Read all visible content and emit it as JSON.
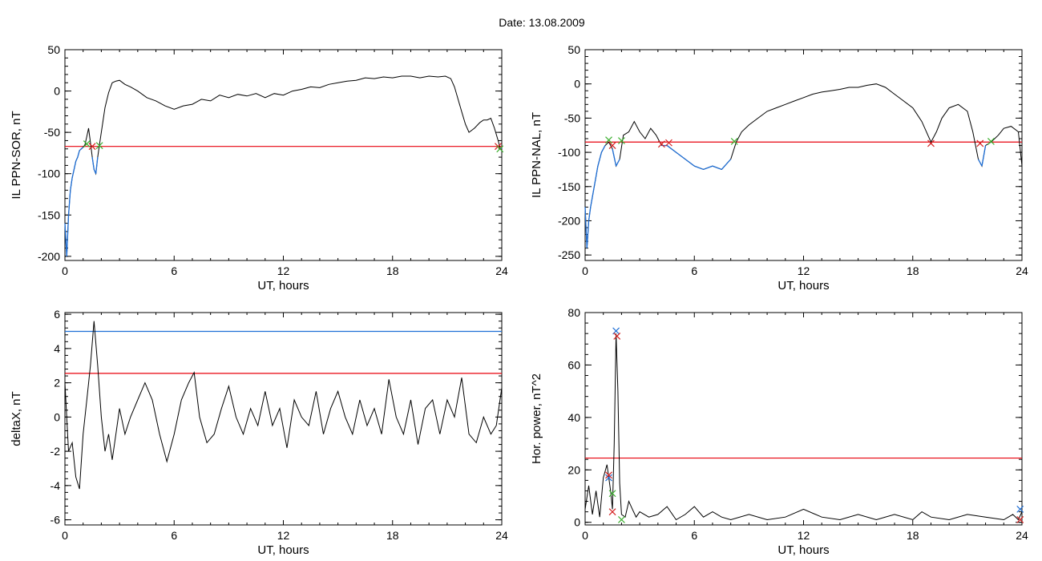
{
  "header": {
    "date_label": "Date:  13.08.2009"
  },
  "colors": {
    "line": "#000000",
    "threshold_red": "#e8000b",
    "threshold_blue": "#1f6fd6",
    "marker_green": "#3cb030",
    "marker_red": "#d42020",
    "marker_blue": "#1f6fd6"
  },
  "chart_data": [
    {
      "id": "sor",
      "type": "line",
      "title": "",
      "xlabel": "UT, hours",
      "ylabel": "IL PPN-SOR, nT",
      "xlim": [
        0,
        24
      ],
      "ylim": [
        -205,
        50
      ],
      "xticks": [
        "0",
        "6",
        "12",
        "18",
        "24"
      ],
      "yticks": [
        "50",
        "0",
        "-50",
        "-100",
        "-150",
        "-200"
      ],
      "ytick_values": [
        50,
        0,
        -50,
        -100,
        -150,
        -200
      ],
      "threshold_red": -67,
      "series": [
        {
          "x": [
            0,
            0.1,
            0.2,
            0.3,
            0.4,
            0.5,
            0.6,
            0.7,
            0.8,
            0.9,
            1.0,
            1.1,
            1.2,
            1.3,
            1.4,
            1.5,
            1.6,
            1.7,
            1.8,
            1.9,
            2.0,
            2.2,
            2.4,
            2.6,
            2.8,
            3.0,
            3.3,
            3.6,
            4.0,
            4.5,
            5.0,
            5.5,
            6.0,
            6.5,
            7.0,
            7.5,
            8.0,
            8.5,
            9.0,
            9.5,
            10.0,
            10.5,
            11.0,
            11.5,
            12.0,
            12.5,
            13.0,
            13.5,
            14.0,
            14.5,
            15.0,
            15.5,
            16.0,
            16.5,
            17.0,
            17.5,
            18.0,
            18.5,
            19.0,
            19.5,
            20.0,
            20.5,
            20.9,
            21.2,
            21.4,
            21.6,
            21.8,
            22.0,
            22.2,
            22.5,
            22.8,
            23.0,
            23.2,
            23.4,
            23.6,
            23.8,
            23.9,
            24.0
          ],
          "values": [
            -160,
            -200,
            -150,
            -120,
            -105,
            -95,
            -85,
            -80,
            -72,
            -70,
            -68,
            -65,
            -55,
            -45,
            -62,
            -80,
            -95,
            -100,
            -80,
            -65,
            -50,
            -20,
            -2,
            10,
            12,
            13,
            8,
            5,
            0,
            -8,
            -12,
            -18,
            -22,
            -18,
            -16,
            -10,
            -12,
            -5,
            -8,
            -4,
            -6,
            -3,
            -8,
            -3,
            -5,
            0,
            2,
            5,
            4,
            8,
            10,
            12,
            13,
            16,
            15,
            17,
            16,
            18,
            18,
            16,
            18,
            17,
            18,
            15,
            5,
            -10,
            -25,
            -40,
            -50,
            -45,
            -38,
            -35,
            -35,
            -33,
            -45,
            -60,
            -68,
            -70
          ]
        }
      ],
      "markers": [
        {
          "x": 1.2,
          "y": -64,
          "color": "green"
        },
        {
          "x": 1.5,
          "y": -67,
          "color": "red"
        },
        {
          "x": 1.9,
          "y": -66,
          "color": "green"
        },
        {
          "x": 23.8,
          "y": -67,
          "color": "red"
        },
        {
          "x": 23.9,
          "y": -70,
          "color": "green"
        }
      ]
    },
    {
      "id": "nal",
      "type": "line",
      "title": "",
      "xlabel": "UT, hours",
      "ylabel": "IL PPN-NAL, nT",
      "xlim": [
        0,
        24
      ],
      "ylim": [
        -258,
        50
      ],
      "xticks": [
        "0",
        "6",
        "12",
        "18",
        "24"
      ],
      "yticks": [
        "50",
        "0",
        "-50",
        "-100",
        "-150",
        "-200",
        "-250"
      ],
      "ytick_values": [
        50,
        0,
        -50,
        -100,
        -150,
        -200,
        -250
      ],
      "threshold_red": -85,
      "series": [
        {
          "x": [
            0,
            0.1,
            0.2,
            0.3,
            0.5,
            0.7,
            0.9,
            1.1,
            1.3,
            1.5,
            1.7,
            1.9,
            2.1,
            2.4,
            2.7,
            3.0,
            3.3,
            3.6,
            3.9,
            4.2,
            4.5,
            5.0,
            5.5,
            6.0,
            6.5,
            7.0,
            7.5,
            8.0,
            8.3,
            8.6,
            9.0,
            9.5,
            10.0,
            10.5,
            11.0,
            11.5,
            12.0,
            12.5,
            13.0,
            13.5,
            14.0,
            14.5,
            15.0,
            15.5,
            16.0,
            16.5,
            17.0,
            17.5,
            18.0,
            18.5,
            19.0,
            19.3,
            19.6,
            20.0,
            20.5,
            21.0,
            21.3,
            21.6,
            21.8,
            22.0,
            22.3,
            22.7,
            23.0,
            23.4,
            23.8,
            24.0
          ],
          "values": [
            -180,
            -240,
            -200,
            -180,
            -150,
            -120,
            -100,
            -90,
            -85,
            -95,
            -120,
            -110,
            -75,
            -70,
            -55,
            -70,
            -80,
            -65,
            -75,
            -90,
            -90,
            -100,
            -110,
            -120,
            -125,
            -120,
            -125,
            -110,
            -85,
            -70,
            -60,
            -50,
            -40,
            -35,
            -30,
            -25,
            -20,
            -15,
            -12,
            -10,
            -8,
            -5,
            -5,
            -2,
            0,
            -5,
            -15,
            -25,
            -35,
            -55,
            -85,
            -70,
            -50,
            -35,
            -30,
            -40,
            -70,
            -110,
            -120,
            -90,
            -85,
            -75,
            -65,
            -62,
            -70,
            -120
          ]
        }
      ],
      "markers": [
        {
          "x": 1.3,
          "y": -82,
          "color": "green"
        },
        {
          "x": 1.5,
          "y": -90,
          "color": "red"
        },
        {
          "x": 2.0,
          "y": -83,
          "color": "green"
        },
        {
          "x": 4.2,
          "y": -88,
          "color": "red"
        },
        {
          "x": 4.6,
          "y": -86,
          "color": "red"
        },
        {
          "x": 8.2,
          "y": -84,
          "color": "green"
        },
        {
          "x": 19.0,
          "y": -87,
          "color": "red"
        },
        {
          "x": 21.7,
          "y": -87,
          "color": "red"
        },
        {
          "x": 22.3,
          "y": -84,
          "color": "green"
        }
      ]
    },
    {
      "id": "deltax",
      "type": "line",
      "title": "",
      "xlabel": "UT, hours",
      "ylabel": "deltaX, nT",
      "xlim": [
        0,
        24
      ],
      "ylim": [
        -6.3,
        6.1
      ],
      "xticks": [
        "0",
        "6",
        "12",
        "18",
        "24"
      ],
      "yticks": [
        "6",
        "4",
        "2",
        "0",
        "-2",
        "-4",
        "-6"
      ],
      "ytick_values": [
        6,
        4,
        2,
        0,
        -2,
        -4,
        -6
      ],
      "threshold_red": 2.55,
      "threshold_blue": 5.0,
      "series": [
        {
          "x": [
            0,
            0.2,
            0.4,
            0.6,
            0.8,
            1.0,
            1.2,
            1.4,
            1.6,
            1.8,
            2.0,
            2.2,
            2.4,
            2.6,
            2.8,
            3.0,
            3.3,
            3.6,
            4.0,
            4.4,
            4.8,
            5.2,
            5.6,
            6.0,
            6.4,
            6.8,
            7.1,
            7.4,
            7.8,
            8.2,
            8.6,
            9.0,
            9.4,
            9.8,
            10.2,
            10.6,
            11.0,
            11.4,
            11.8,
            12.2,
            12.6,
            13.0,
            13.4,
            13.8,
            14.2,
            14.6,
            15.0,
            15.4,
            15.8,
            16.2,
            16.6,
            17.0,
            17.4,
            17.8,
            18.2,
            18.6,
            19.0,
            19.4,
            19.8,
            20.2,
            20.6,
            21.0,
            21.4,
            21.8,
            22.2,
            22.6,
            23.0,
            23.4,
            23.7,
            24.0
          ],
          "values": [
            2.0,
            -2.0,
            -1.5,
            -3.5,
            -4.2,
            -1.0,
            1.0,
            3.0,
            5.6,
            3.0,
            0.0,
            -2.0,
            -1.0,
            -2.5,
            -1.0,
            0.5,
            -1.0,
            0.0,
            1.0,
            2.0,
            1.0,
            -1.0,
            -2.6,
            -1.0,
            1.0,
            2.0,
            2.6,
            0.0,
            -1.5,
            -1.0,
            0.5,
            1.8,
            0.0,
            -1.0,
            0.5,
            -0.5,
            1.5,
            -0.5,
            0.5,
            -1.8,
            1.0,
            0.0,
            -0.5,
            1.5,
            -1.0,
            0.5,
            1.5,
            0.0,
            -1.0,
            1.0,
            -0.5,
            0.5,
            -1.0,
            2.2,
            0.0,
            -1.0,
            1.0,
            -1.6,
            0.5,
            1.0,
            -1.0,
            1.0,
            0.0,
            2.3,
            -1.0,
            -1.5,
            0.0,
            -1.0,
            -0.5,
            1.7
          ]
        }
      ],
      "markers": []
    },
    {
      "id": "power",
      "type": "line",
      "title": "",
      "xlabel": "UT, hours",
      "ylabel": "Hor. power, nT^2",
      "xlim": [
        0,
        24
      ],
      "ylim": [
        -1,
        80
      ],
      "xticks": [
        "0",
        "6",
        "12",
        "18",
        "24"
      ],
      "yticks": [
        "80",
        "60",
        "40",
        "20",
        "0"
      ],
      "ytick_values": [
        80,
        60,
        40,
        20,
        0
      ],
      "threshold_red": 24.5,
      "series": [
        {
          "x": [
            0,
            0.2,
            0.4,
            0.6,
            0.8,
            1.0,
            1.2,
            1.4,
            1.5,
            1.6,
            1.7,
            1.8,
            1.9,
            2.0,
            2.2,
            2.4,
            2.6,
            2.8,
            3.0,
            3.5,
            4.0,
            4.5,
            5.0,
            5.5,
            6.0,
            6.5,
            7.0,
            7.5,
            8.0,
            9.0,
            10.0,
            11.0,
            12.0,
            13.0,
            14.0,
            15.0,
            16.0,
            17.0,
            18.0,
            18.5,
            19.0,
            20.0,
            21.0,
            22.0,
            23.0,
            23.5,
            23.8,
            24.0
          ],
          "values": [
            5,
            14,
            3,
            12,
            2,
            17,
            22,
            12,
            5,
            30,
            72,
            50,
            15,
            3,
            2,
            8,
            5,
            2,
            4,
            2,
            3,
            6,
            1,
            3,
            6,
            2,
            4,
            2,
            1,
            3,
            1,
            2,
            5,
            2,
            1,
            3,
            1,
            3,
            1,
            4,
            2,
            1,
            3,
            2,
            1,
            3,
            1,
            4
          ]
        }
      ],
      "markers": [
        {
          "x": 1.3,
          "y": 17,
          "color": "blue"
        },
        {
          "x": 1.3,
          "y": 18,
          "color": "red"
        },
        {
          "x": 1.5,
          "y": 11,
          "color": "green"
        },
        {
          "x": 1.5,
          "y": 4,
          "color": "red"
        },
        {
          "x": 1.7,
          "y": 73,
          "color": "blue"
        },
        {
          "x": 1.75,
          "y": 71,
          "color": "red"
        },
        {
          "x": 2.0,
          "y": 1,
          "color": "green"
        },
        {
          "x": 23.9,
          "y": 5,
          "color": "blue"
        },
        {
          "x": 23.9,
          "y": 1,
          "color": "red"
        }
      ]
    }
  ]
}
